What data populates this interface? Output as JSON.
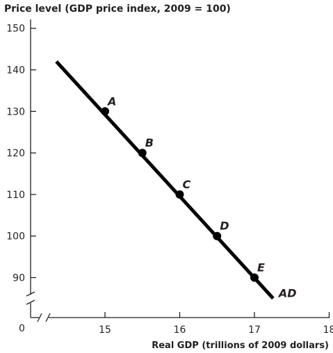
{
  "chart_data": {
    "type": "line",
    "ylabel": "Price level (GDP price index, 2009 = 100)",
    "xlabel": "Real GDP (trillions of 2009 dollars)",
    "origin_label": "0",
    "x_ticks": [
      "15",
      "16",
      "17",
      "18"
    ],
    "x_tick_values": [
      15,
      16,
      17,
      18
    ],
    "y_ticks": [
      "90",
      "100",
      "110",
      "120",
      "130",
      "140",
      "150"
    ],
    "y_tick_values": [
      90,
      100,
      110,
      120,
      130,
      140,
      150
    ],
    "xlim": [
      14.4,
      18
    ],
    "ylim": [
      84,
      150
    ],
    "axis_breaks": [
      "x",
      "y"
    ],
    "series": [
      {
        "name": "AD",
        "line": [
          {
            "x": 14.35,
            "y": 142
          },
          {
            "x": 17.25,
            "y": 85
          }
        ],
        "color": "#000000"
      }
    ],
    "points": [
      {
        "label": "A",
        "x": 15.0,
        "y": 130
      },
      {
        "label": "B",
        "x": 15.5,
        "y": 120
      },
      {
        "label": "C",
        "x": 16.0,
        "y": 110
      },
      {
        "label": "D",
        "x": 16.5,
        "y": 100
      },
      {
        "label": "E",
        "x": 17.0,
        "y": 90
      }
    ],
    "grid": false
  }
}
